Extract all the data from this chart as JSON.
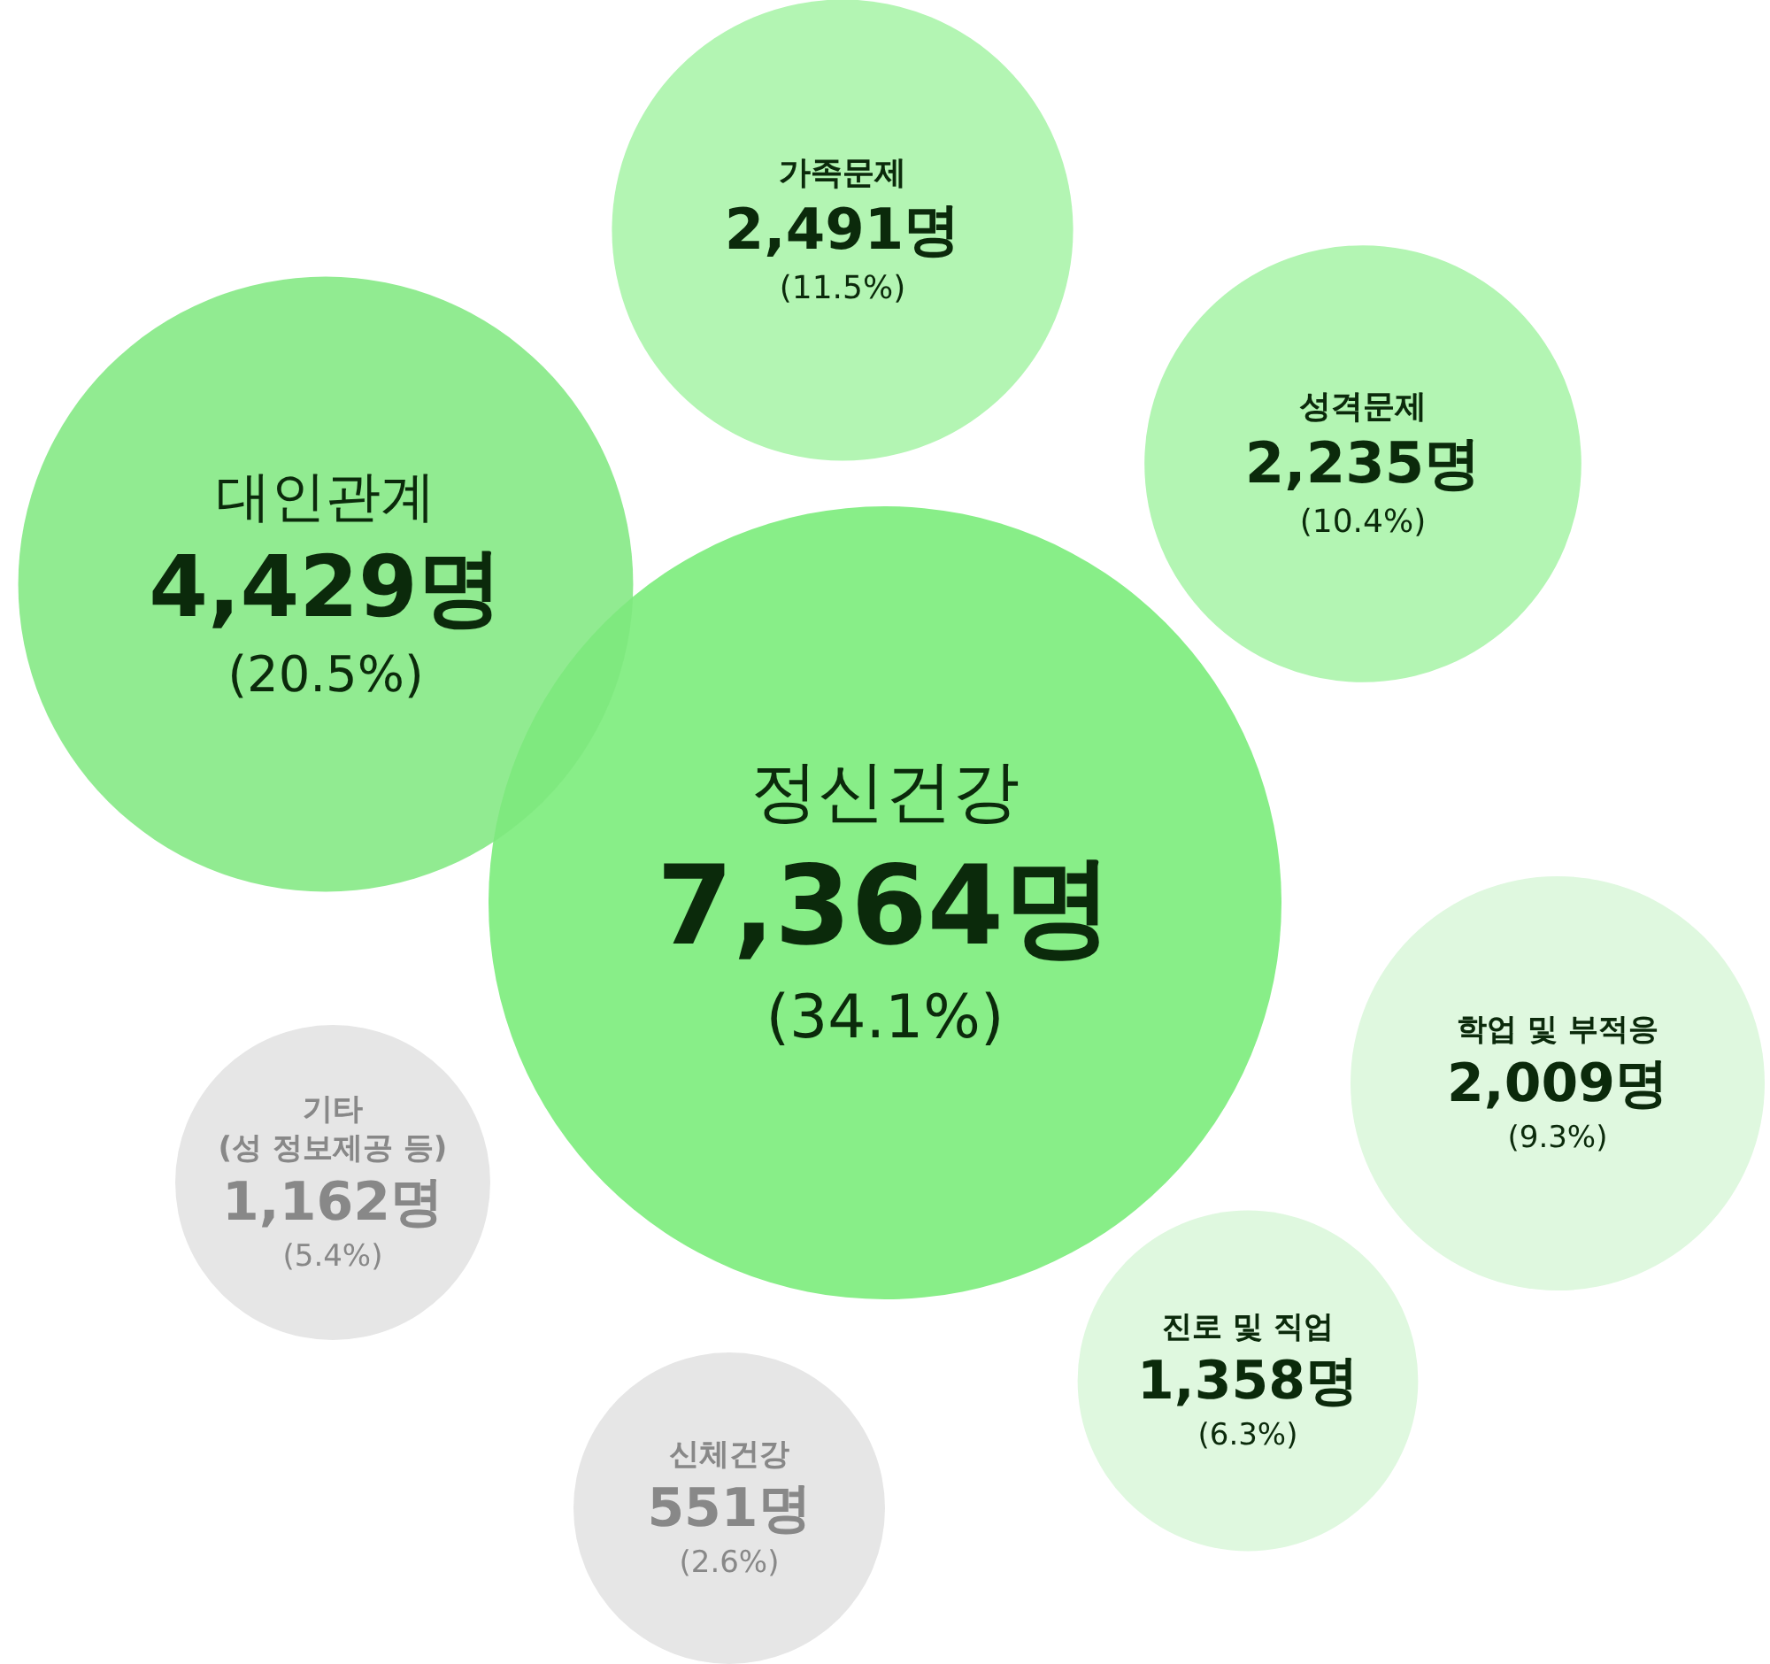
{
  "chart_data": {
    "type": "other",
    "categories": [
      "정신건강",
      "대인관계",
      "가족문제",
      "성격문제",
      "학업 및 부적응",
      "진로 및 직업",
      "기타\n(성 정보제공 등)",
      "신체건강"
    ],
    "values": [
      7364,
      4429,
      2491,
      2235,
      2009,
      1358,
      1162,
      551
    ],
    "value_labels": [
      "7,364명",
      "4,429명",
      "2,491명",
      "2,235명",
      "2,009명",
      "1,358명",
      "1,162명",
      "551명"
    ],
    "annotations": [
      {
        "text": "(34.1%)",
        "x": "정신건강"
      },
      {
        "text": "(20.5%)",
        "x": "대인관계"
      },
      {
        "text": "(11.5%)",
        "x": "가족문제"
      },
      {
        "text": "(10.4%)",
        "x": "성격문제"
      },
      {
        "text": "(9.3%)",
        "x": "학업 및 부적응"
      },
      {
        "text": "(6.3%)",
        "x": "진로 및 직업"
      },
      {
        "text": "(5.4%)",
        "x": "기타\n(성 정보제공 등)"
      },
      {
        "text": "(2.6%)",
        "x": "신체건강"
      }
    ],
    "colors": [
      "#88ee88",
      "#7ee87e",
      "#b3f5b3",
      "#b3f5b3",
      "#dff8df",
      "#dff8df",
      "#e6e6e6",
      "#e6e6e6"
    ]
  }
}
